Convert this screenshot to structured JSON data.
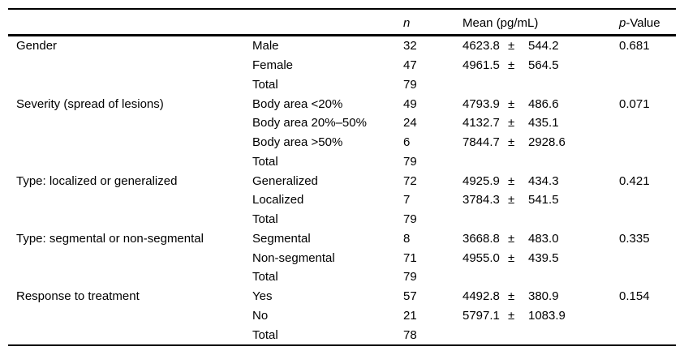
{
  "page": {
    "background": "#ffffff",
    "text_color": "#000000",
    "rule_color": "#000000"
  },
  "table": {
    "headers": {
      "group": "",
      "subcategory": "",
      "n": "n",
      "mean": "Mean (pg/mL)",
      "p_italic": "p",
      "p_rest": "-Value"
    },
    "sections": [
      {
        "label": "Gender",
        "rows": [
          {
            "sub": "Male",
            "n": "32",
            "mean": "4623.8",
            "pm": "±",
            "sd": "544.2",
            "p": "0.681"
          },
          {
            "sub": "Female",
            "n": "47",
            "mean": "4961.5",
            "pm": "±",
            "sd": "564.5",
            "p": ""
          },
          {
            "sub": "Total",
            "n": "79",
            "mean": "",
            "pm": "",
            "sd": "",
            "p": ""
          }
        ]
      },
      {
        "label": "Severity (spread of lesions)",
        "rows": [
          {
            "sub": "Body area <20%",
            "n": "49",
            "mean": "4793.9",
            "pm": "±",
            "sd": "486.6",
            "p": "0.071"
          },
          {
            "sub": "Body area 20%–50%",
            "n": "24",
            "mean": "4132.7",
            "pm": "±",
            "sd": "435.1",
            "p": ""
          },
          {
            "sub": "Body area >50%",
            "n": "6",
            "mean": "7844.7",
            "pm": "±",
            "sd": "2928.6",
            "p": ""
          },
          {
            "sub": "Total",
            "n": "79",
            "mean": "",
            "pm": "",
            "sd": "",
            "p": ""
          }
        ]
      },
      {
        "label": "Type: localized or generalized",
        "rows": [
          {
            "sub": "Generalized",
            "n": "72",
            "mean": "4925.9",
            "pm": "±",
            "sd": "434.3",
            "p": "0.421"
          },
          {
            "sub": "Localized",
            "n": "7",
            "mean": "3784.3",
            "pm": "±",
            "sd": "541.5",
            "p": ""
          },
          {
            "sub": "Total",
            "n": "79",
            "mean": "",
            "pm": "",
            "sd": "",
            "p": ""
          }
        ]
      },
      {
        "label": "Type: segmental or non-segmental",
        "rows": [
          {
            "sub": "Segmental",
            "n": "8",
            "mean": "3668.8",
            "pm": "±",
            "sd": "483.0",
            "p": "0.335"
          },
          {
            "sub": "Non-segmental",
            "n": "71",
            "mean": "4955.0",
            "pm": "±",
            "sd": "439.5",
            "p": ""
          },
          {
            "sub": "Total",
            "n": "79",
            "mean": "",
            "pm": "",
            "sd": "",
            "p": ""
          }
        ]
      },
      {
        "label": "Response to treatment",
        "rows": [
          {
            "sub": "Yes",
            "n": "57",
            "mean": "4492.8",
            "pm": "±",
            "sd": "380.9",
            "p": "0.154"
          },
          {
            "sub": "No",
            "n": "21",
            "mean": "5797.1",
            "pm": "±",
            "sd": "1083.9",
            "p": ""
          },
          {
            "sub": "Total",
            "n": "78",
            "mean": "",
            "pm": "",
            "sd": "",
            "p": ""
          }
        ]
      }
    ]
  }
}
